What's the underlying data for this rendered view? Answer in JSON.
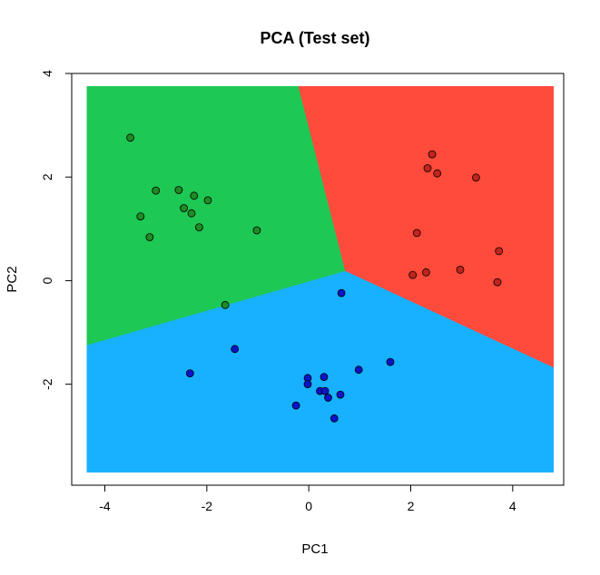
{
  "chart_data": {
    "type": "scatter",
    "title": "PCA (Test set)",
    "xlabel": "PC1",
    "ylabel": "PC2",
    "xlim": [
      -4.65,
      5.0
    ],
    "ylim": [
      -3.95,
      4.0
    ],
    "xticks": [
      -4,
      -2,
      0,
      2,
      4
    ],
    "yticks": [
      -2,
      0,
      2,
      4
    ],
    "grid": false,
    "legend": "none",
    "region_extent": {
      "x": [
        -4.35,
        4.8
      ],
      "y": [
        -3.7,
        3.75
      ]
    },
    "colors": {
      "region_green": "#1EC854",
      "region_red": "#FF4B3B",
      "region_blue": "#18B1FF",
      "point_green": "#1E8B24",
      "point_red": "#C1241C",
      "point_blue": "#0A14C9",
      "point_outline": "#000000"
    },
    "regions": [
      {
        "name": "green",
        "polygon": [
          [
            -4.35,
            3.75
          ],
          [
            -0.2,
            3.75
          ],
          [
            0.72,
            0.18
          ],
          [
            -4.35,
            -1.25
          ]
        ]
      },
      {
        "name": "red",
        "polygon": [
          [
            -0.2,
            3.75
          ],
          [
            4.8,
            3.75
          ],
          [
            4.8,
            -1.68
          ],
          [
            0.72,
            0.18
          ]
        ]
      },
      {
        "name": "blue",
        "polygon": [
          [
            -4.35,
            -1.25
          ],
          [
            0.72,
            0.18
          ],
          [
            4.8,
            -1.68
          ],
          [
            4.8,
            -3.7
          ],
          [
            -4.35,
            -3.7
          ]
        ]
      }
    ],
    "series": [
      {
        "class": "green",
        "points": [
          [
            -3.5,
            2.76
          ],
          [
            -3.0,
            1.74
          ],
          [
            -2.55,
            1.75
          ],
          [
            -2.25,
            1.64
          ],
          [
            -1.98,
            1.55
          ],
          [
            -3.3,
            1.24
          ],
          [
            -2.45,
            1.4
          ],
          [
            -2.3,
            1.3
          ],
          [
            -2.15,
            1.03
          ],
          [
            -3.12,
            0.84
          ],
          [
            -1.02,
            0.97
          ],
          [
            -1.64,
            -0.47
          ]
        ]
      },
      {
        "class": "red",
        "points": [
          [
            2.42,
            2.44
          ],
          [
            2.33,
            2.17
          ],
          [
            2.52,
            2.07
          ],
          [
            3.28,
            1.99
          ],
          [
            2.12,
            0.92
          ],
          [
            3.73,
            0.57
          ],
          [
            2.97,
            0.21
          ],
          [
            2.3,
            0.16
          ],
          [
            2.04,
            0.11
          ],
          [
            3.7,
            -0.03
          ]
        ]
      },
      {
        "class": "blue",
        "points": [
          [
            0.64,
            -0.24
          ],
          [
            -1.45,
            -1.32
          ],
          [
            -2.33,
            -1.79
          ],
          [
            1.6,
            -1.57
          ],
          [
            0.98,
            -1.72
          ],
          [
            -0.02,
            -1.88
          ],
          [
            0.3,
            -1.86
          ],
          [
            -0.02,
            -2.0
          ],
          [
            0.22,
            -2.13
          ],
          [
            0.32,
            -2.13
          ],
          [
            0.38,
            -2.26
          ],
          [
            0.62,
            -2.2
          ],
          [
            -0.25,
            -2.41
          ],
          [
            0.5,
            -2.66
          ]
        ]
      }
    ]
  }
}
